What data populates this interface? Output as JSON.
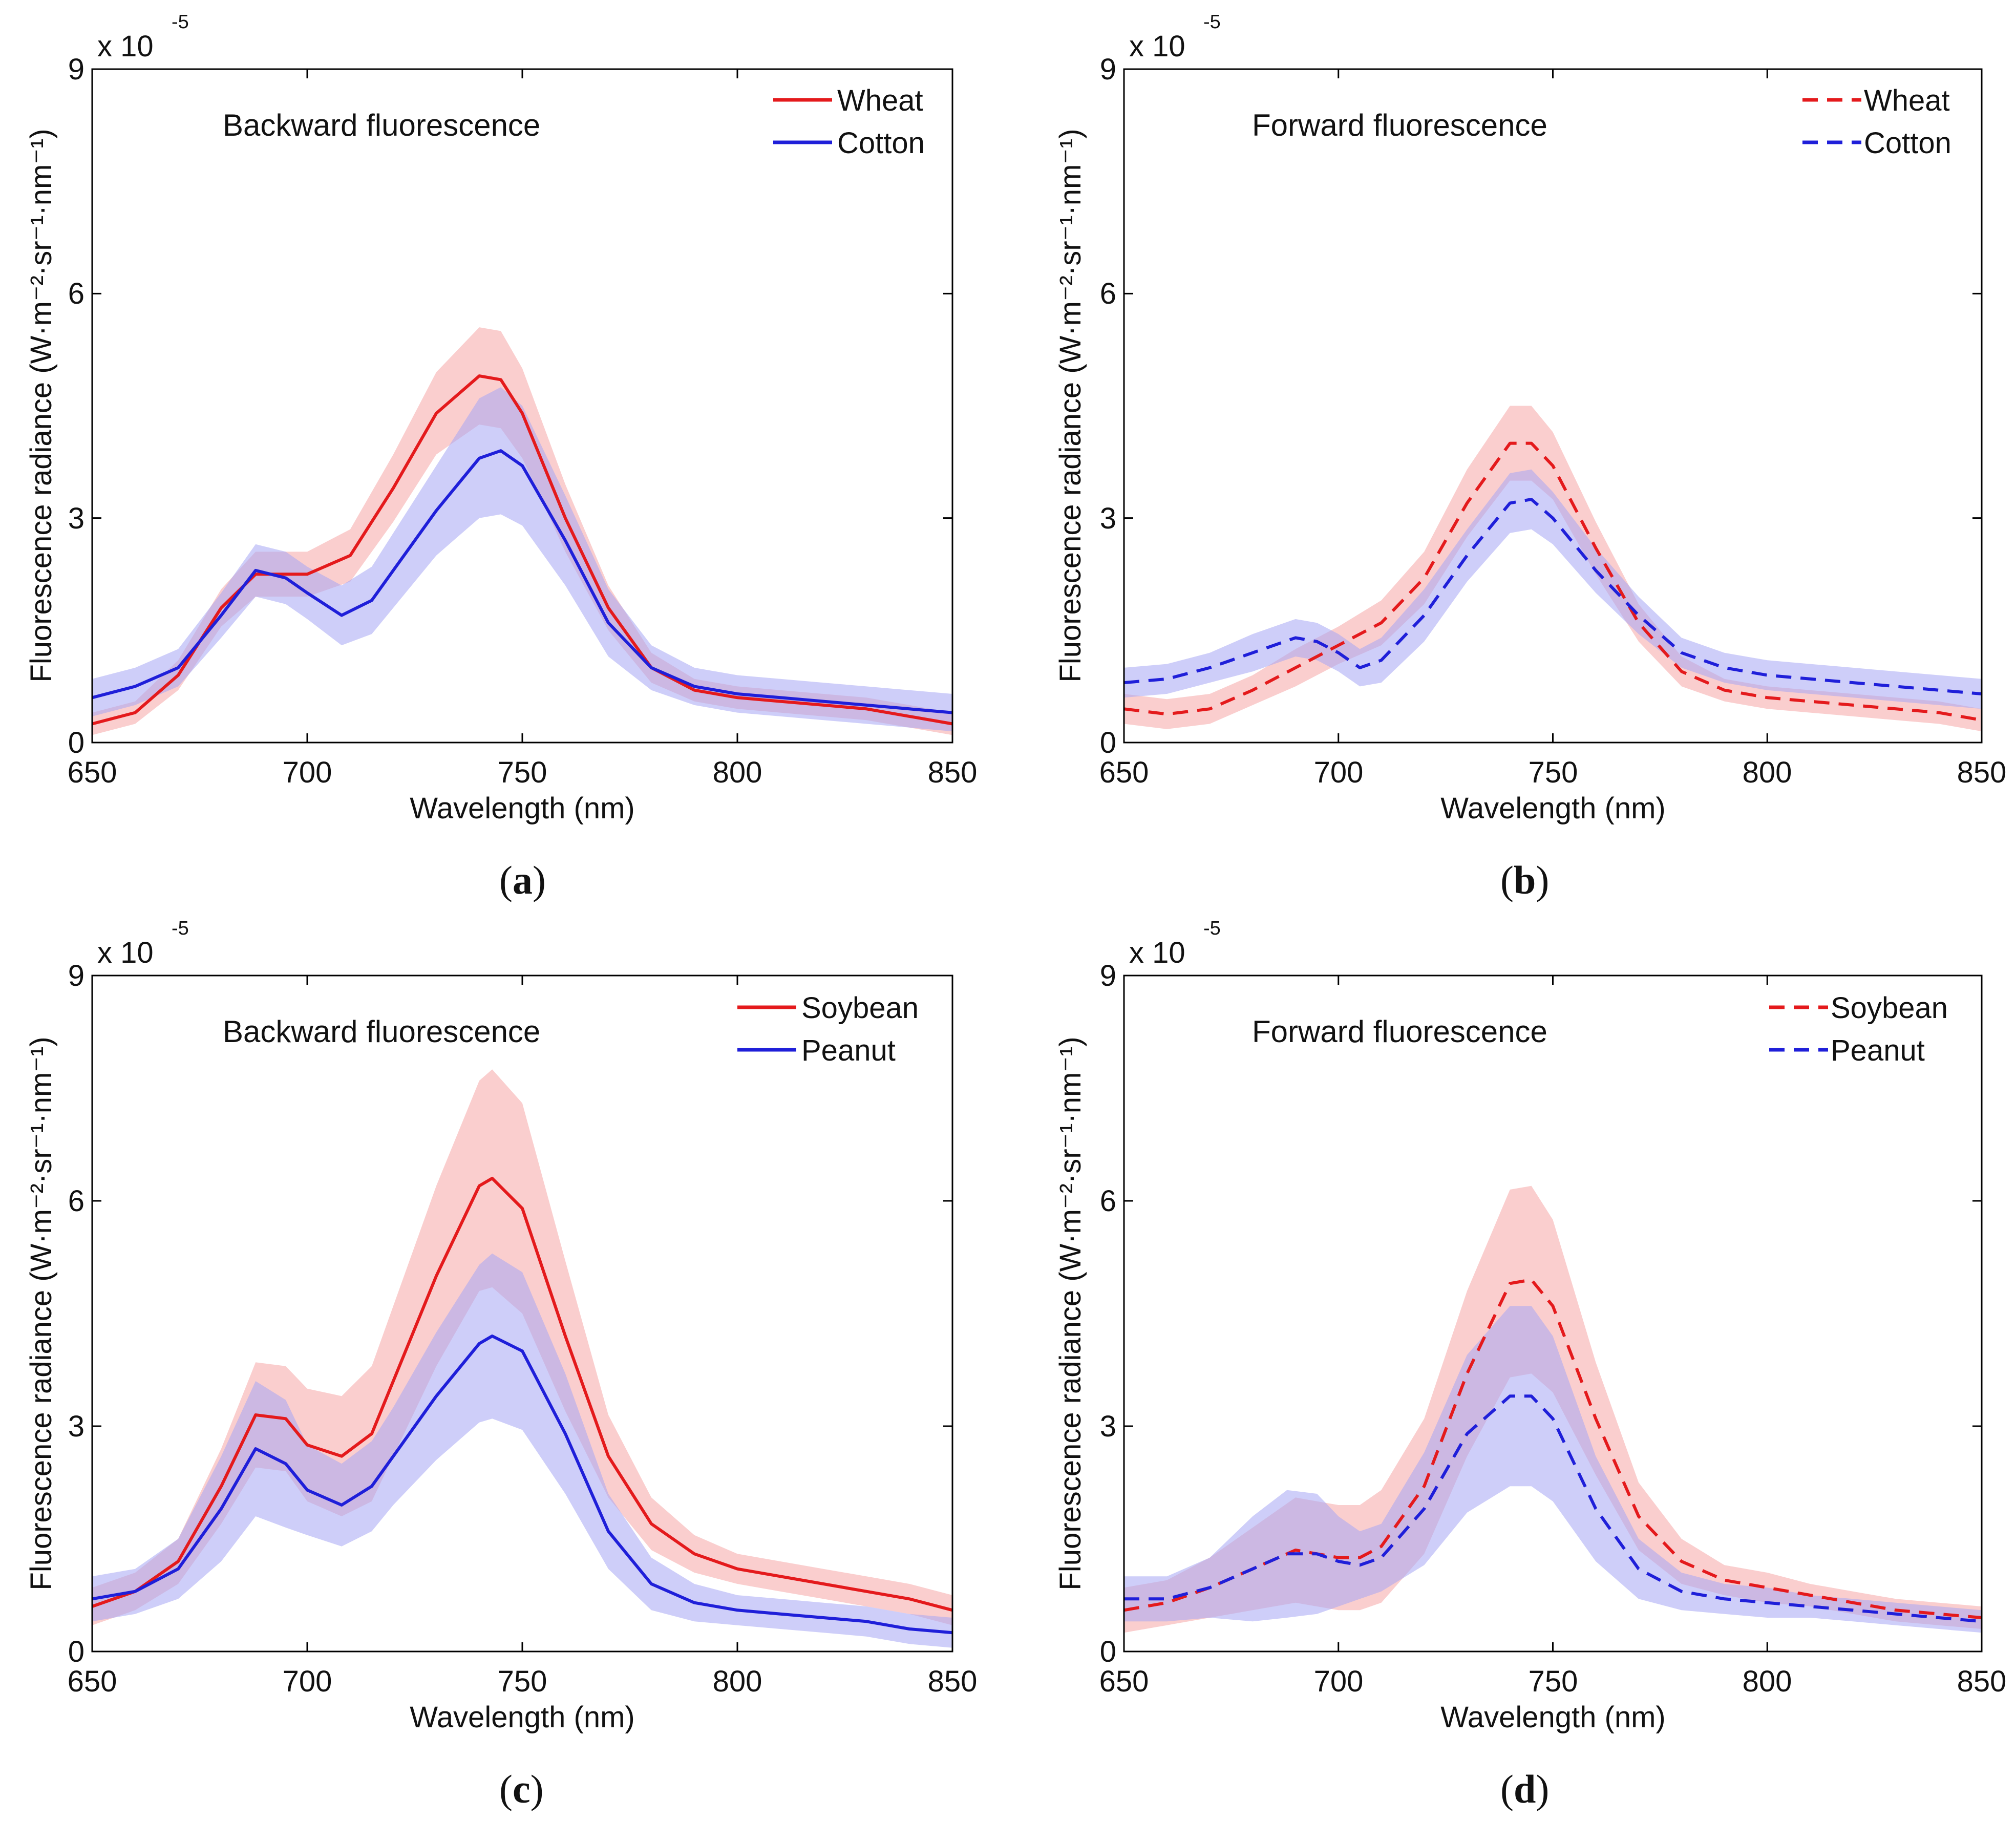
{
  "colors": {
    "red": "#e41a1c",
    "blue": "#1f1fd9",
    "red_band": "#f6a6a6",
    "blue_band": "#a6a6f4"
  },
  "chart_data": [
    {
      "type": "line",
      "panel_label": "a",
      "annotation": "Backward fluorescence",
      "xlabel": "Wavelength (nm)",
      "ylabel": "Fluorescence radiance (W·m⁻²·sr⁻¹·nm⁻¹)",
      "y_scale_base": "x 10",
      "y_scale_exponent": "-5",
      "xlim": [
        650,
        850
      ],
      "ylim": [
        0,
        9
      ],
      "xticks": [
        650,
        700,
        750,
        800,
        850
      ],
      "yticks": [
        0,
        3,
        6,
        9
      ],
      "legend_position": "top-right",
      "series": [
        {
          "name": "Wheat",
          "color": "red",
          "dash": "solid",
          "x": [
            650,
            660,
            670,
            680,
            688,
            695,
            700,
            710,
            720,
            730,
            740,
            745,
            750,
            760,
            770,
            780,
            790,
            800,
            810,
            820,
            830,
            840,
            850
          ],
          "y": [
            0.25,
            0.4,
            0.9,
            1.8,
            2.25,
            2.25,
            2.25,
            2.5,
            3.4,
            4.4,
            4.9,
            4.85,
            4.4,
            3.0,
            1.8,
            1.0,
            0.7,
            0.6,
            0.55,
            0.5,
            0.45,
            0.35,
            0.25
          ],
          "std": [
            0.15,
            0.15,
            0.2,
            0.25,
            0.3,
            0.3,
            0.3,
            0.35,
            0.45,
            0.55,
            0.65,
            0.65,
            0.6,
            0.45,
            0.3,
            0.2,
            0.15,
            0.15,
            0.15,
            0.15,
            0.15,
            0.15,
            0.15
          ]
        },
        {
          "name": "Cotton",
          "color": "blue",
          "dash": "solid",
          "x": [
            650,
            660,
            670,
            680,
            688,
            695,
            700,
            708,
            715,
            720,
            730,
            740,
            745,
            750,
            760,
            770,
            780,
            790,
            800,
            810,
            820,
            830,
            840,
            850
          ],
          "y": [
            0.6,
            0.75,
            1.0,
            1.7,
            2.3,
            2.2,
            2.0,
            1.7,
            1.9,
            2.3,
            3.1,
            3.8,
            3.9,
            3.7,
            2.7,
            1.6,
            1.0,
            0.75,
            0.65,
            0.6,
            0.55,
            0.5,
            0.45,
            0.4
          ],
          "std": [
            0.25,
            0.25,
            0.25,
            0.3,
            0.35,
            0.35,
            0.35,
            0.4,
            0.45,
            0.5,
            0.6,
            0.8,
            0.85,
            0.8,
            0.6,
            0.45,
            0.3,
            0.25,
            0.25,
            0.25,
            0.25,
            0.25,
            0.25,
            0.25
          ]
        }
      ]
    },
    {
      "type": "line",
      "panel_label": "b",
      "annotation": "Forward fluorescence",
      "xlabel": "Wavelength (nm)",
      "ylabel": "Fluorescence radiance (W·m⁻²·sr⁻¹·nm⁻¹)",
      "y_scale_base": "x 10",
      "y_scale_exponent": "-5",
      "xlim": [
        650,
        850
      ],
      "ylim": [
        0,
        9
      ],
      "xticks": [
        650,
        700,
        750,
        800,
        850
      ],
      "yticks": [
        0,
        3,
        6,
        9
      ],
      "legend_position": "top-right",
      "series": [
        {
          "name": "Wheat",
          "color": "red",
          "dash": "dashed",
          "x": [
            650,
            660,
            670,
            680,
            690,
            700,
            710,
            720,
            730,
            740,
            745,
            750,
            760,
            770,
            780,
            790,
            800,
            810,
            820,
            830,
            840,
            850
          ],
          "y": [
            0.45,
            0.38,
            0.45,
            0.7,
            1.0,
            1.3,
            1.6,
            2.2,
            3.2,
            4.0,
            4.0,
            3.7,
            2.6,
            1.6,
            0.95,
            0.7,
            0.6,
            0.55,
            0.5,
            0.45,
            0.4,
            0.3
          ],
          "std": [
            0.2,
            0.2,
            0.2,
            0.2,
            0.25,
            0.25,
            0.3,
            0.35,
            0.45,
            0.5,
            0.5,
            0.45,
            0.35,
            0.25,
            0.2,
            0.15,
            0.15,
            0.15,
            0.15,
            0.15,
            0.15,
            0.15
          ]
        },
        {
          "name": "Cotton",
          "color": "blue",
          "dash": "dashed",
          "x": [
            650,
            660,
            670,
            680,
            690,
            695,
            700,
            705,
            710,
            720,
            730,
            740,
            745,
            750,
            760,
            770,
            780,
            790,
            800,
            810,
            820,
            830,
            840,
            850
          ],
          "y": [
            0.8,
            0.85,
            1.0,
            1.2,
            1.4,
            1.35,
            1.2,
            1.0,
            1.1,
            1.7,
            2.5,
            3.2,
            3.25,
            3.0,
            2.3,
            1.7,
            1.2,
            1.0,
            0.9,
            0.85,
            0.8,
            0.75,
            0.7,
            0.65
          ],
          "std": [
            0.2,
            0.2,
            0.2,
            0.25,
            0.25,
            0.25,
            0.25,
            0.25,
            0.3,
            0.35,
            0.35,
            0.4,
            0.4,
            0.35,
            0.3,
            0.25,
            0.2,
            0.2,
            0.2,
            0.2,
            0.2,
            0.2,
            0.2,
            0.2
          ]
        }
      ]
    },
    {
      "type": "line",
      "panel_label": "c",
      "annotation": "Backward fluorescence",
      "xlabel": "Wavelength (nm)",
      "ylabel": "Fluorescence radiance (W·m⁻²·sr⁻¹·nm⁻¹)",
      "y_scale_base": "x 10",
      "y_scale_exponent": "-5",
      "xlim": [
        650,
        850
      ],
      "ylim": [
        0,
        9
      ],
      "xticks": [
        650,
        700,
        750,
        800,
        850
      ],
      "yticks": [
        0,
        3,
        6,
        9
      ],
      "legend_position": "top-right",
      "series": [
        {
          "name": "Soybean",
          "color": "red",
          "dash": "solid",
          "x": [
            650,
            660,
            670,
            680,
            688,
            695,
            700,
            708,
            715,
            720,
            730,
            740,
            743,
            750,
            760,
            770,
            780,
            790,
            800,
            810,
            820,
            830,
            840,
            850
          ],
          "y": [
            0.6,
            0.8,
            1.2,
            2.2,
            3.15,
            3.1,
            2.75,
            2.6,
            2.9,
            3.6,
            5.0,
            6.2,
            6.3,
            5.9,
            4.2,
            2.6,
            1.7,
            1.3,
            1.1,
            1.0,
            0.9,
            0.8,
            0.7,
            0.55
          ],
          "std": [
            0.25,
            0.25,
            0.3,
            0.5,
            0.7,
            0.7,
            0.75,
            0.8,
            0.9,
            1.0,
            1.2,
            1.4,
            1.45,
            1.4,
            1.0,
            0.55,
            0.35,
            0.25,
            0.2,
            0.2,
            0.2,
            0.2,
            0.2,
            0.2
          ]
        },
        {
          "name": "Peanut",
          "color": "blue",
          "dash": "solid",
          "x": [
            650,
            660,
            670,
            680,
            688,
            695,
            700,
            708,
            715,
            720,
            730,
            740,
            743,
            750,
            760,
            770,
            780,
            790,
            800,
            810,
            820,
            830,
            840,
            850
          ],
          "y": [
            0.7,
            0.8,
            1.1,
            1.9,
            2.7,
            2.5,
            2.15,
            1.95,
            2.2,
            2.6,
            3.4,
            4.1,
            4.2,
            4.0,
            2.9,
            1.6,
            0.9,
            0.65,
            0.55,
            0.5,
            0.45,
            0.4,
            0.3,
            0.25
          ],
          "std": [
            0.3,
            0.3,
            0.4,
            0.7,
            0.9,
            0.85,
            0.6,
            0.55,
            0.6,
            0.65,
            0.85,
            1.05,
            1.1,
            1.05,
            0.8,
            0.5,
            0.35,
            0.25,
            0.2,
            0.2,
            0.2,
            0.2,
            0.2,
            0.2
          ]
        }
      ]
    },
    {
      "type": "line",
      "panel_label": "d",
      "annotation": "Forward fluorescence",
      "xlabel": "Wavelength (nm)",
      "ylabel": "Fluorescence radiance (W·m⁻²·sr⁻¹·nm⁻¹)",
      "y_scale_base": "x 10",
      "y_scale_exponent": "-5",
      "xlim": [
        650,
        850
      ],
      "ylim": [
        0,
        9
      ],
      "xticks": [
        650,
        700,
        750,
        800,
        850
      ],
      "yticks": [
        0,
        3,
        6,
        9
      ],
      "legend_position": "top-right",
      "series": [
        {
          "name": "Soybean",
          "color": "red",
          "dash": "dashed",
          "x": [
            650,
            660,
            670,
            680,
            690,
            695,
            700,
            705,
            710,
            720,
            730,
            740,
            745,
            750,
            760,
            770,
            780,
            790,
            800,
            810,
            820,
            830,
            840,
            850
          ],
          "y": [
            0.55,
            0.65,
            0.85,
            1.1,
            1.35,
            1.3,
            1.25,
            1.25,
            1.4,
            2.2,
            3.7,
            4.9,
            4.95,
            4.6,
            3.1,
            1.8,
            1.2,
            0.95,
            0.85,
            0.75,
            0.65,
            0.55,
            0.5,
            0.45
          ],
          "std": [
            0.3,
            0.3,
            0.4,
            0.55,
            0.7,
            0.7,
            0.7,
            0.7,
            0.75,
            0.9,
            1.1,
            1.25,
            1.25,
            1.15,
            0.75,
            0.45,
            0.3,
            0.2,
            0.2,
            0.15,
            0.15,
            0.15,
            0.15,
            0.15
          ]
        },
        {
          "name": "Peanut",
          "color": "blue",
          "dash": "dashed",
          "x": [
            650,
            660,
            670,
            680,
            688,
            695,
            700,
            705,
            710,
            720,
            730,
            740,
            745,
            750,
            760,
            770,
            780,
            790,
            800,
            810,
            820,
            830,
            840,
            850
          ],
          "y": [
            0.7,
            0.7,
            0.85,
            1.1,
            1.3,
            1.3,
            1.2,
            1.15,
            1.25,
            1.9,
            2.9,
            3.4,
            3.4,
            3.1,
            1.9,
            1.1,
            0.8,
            0.7,
            0.65,
            0.6,
            0.55,
            0.5,
            0.45,
            0.4
          ],
          "std": [
            0.3,
            0.3,
            0.4,
            0.7,
            0.85,
            0.8,
            0.6,
            0.45,
            0.45,
            0.75,
            1.05,
            1.2,
            1.2,
            1.1,
            0.7,
            0.4,
            0.25,
            0.2,
            0.2,
            0.15,
            0.15,
            0.15,
            0.15,
            0.15
          ]
        }
      ]
    }
  ]
}
